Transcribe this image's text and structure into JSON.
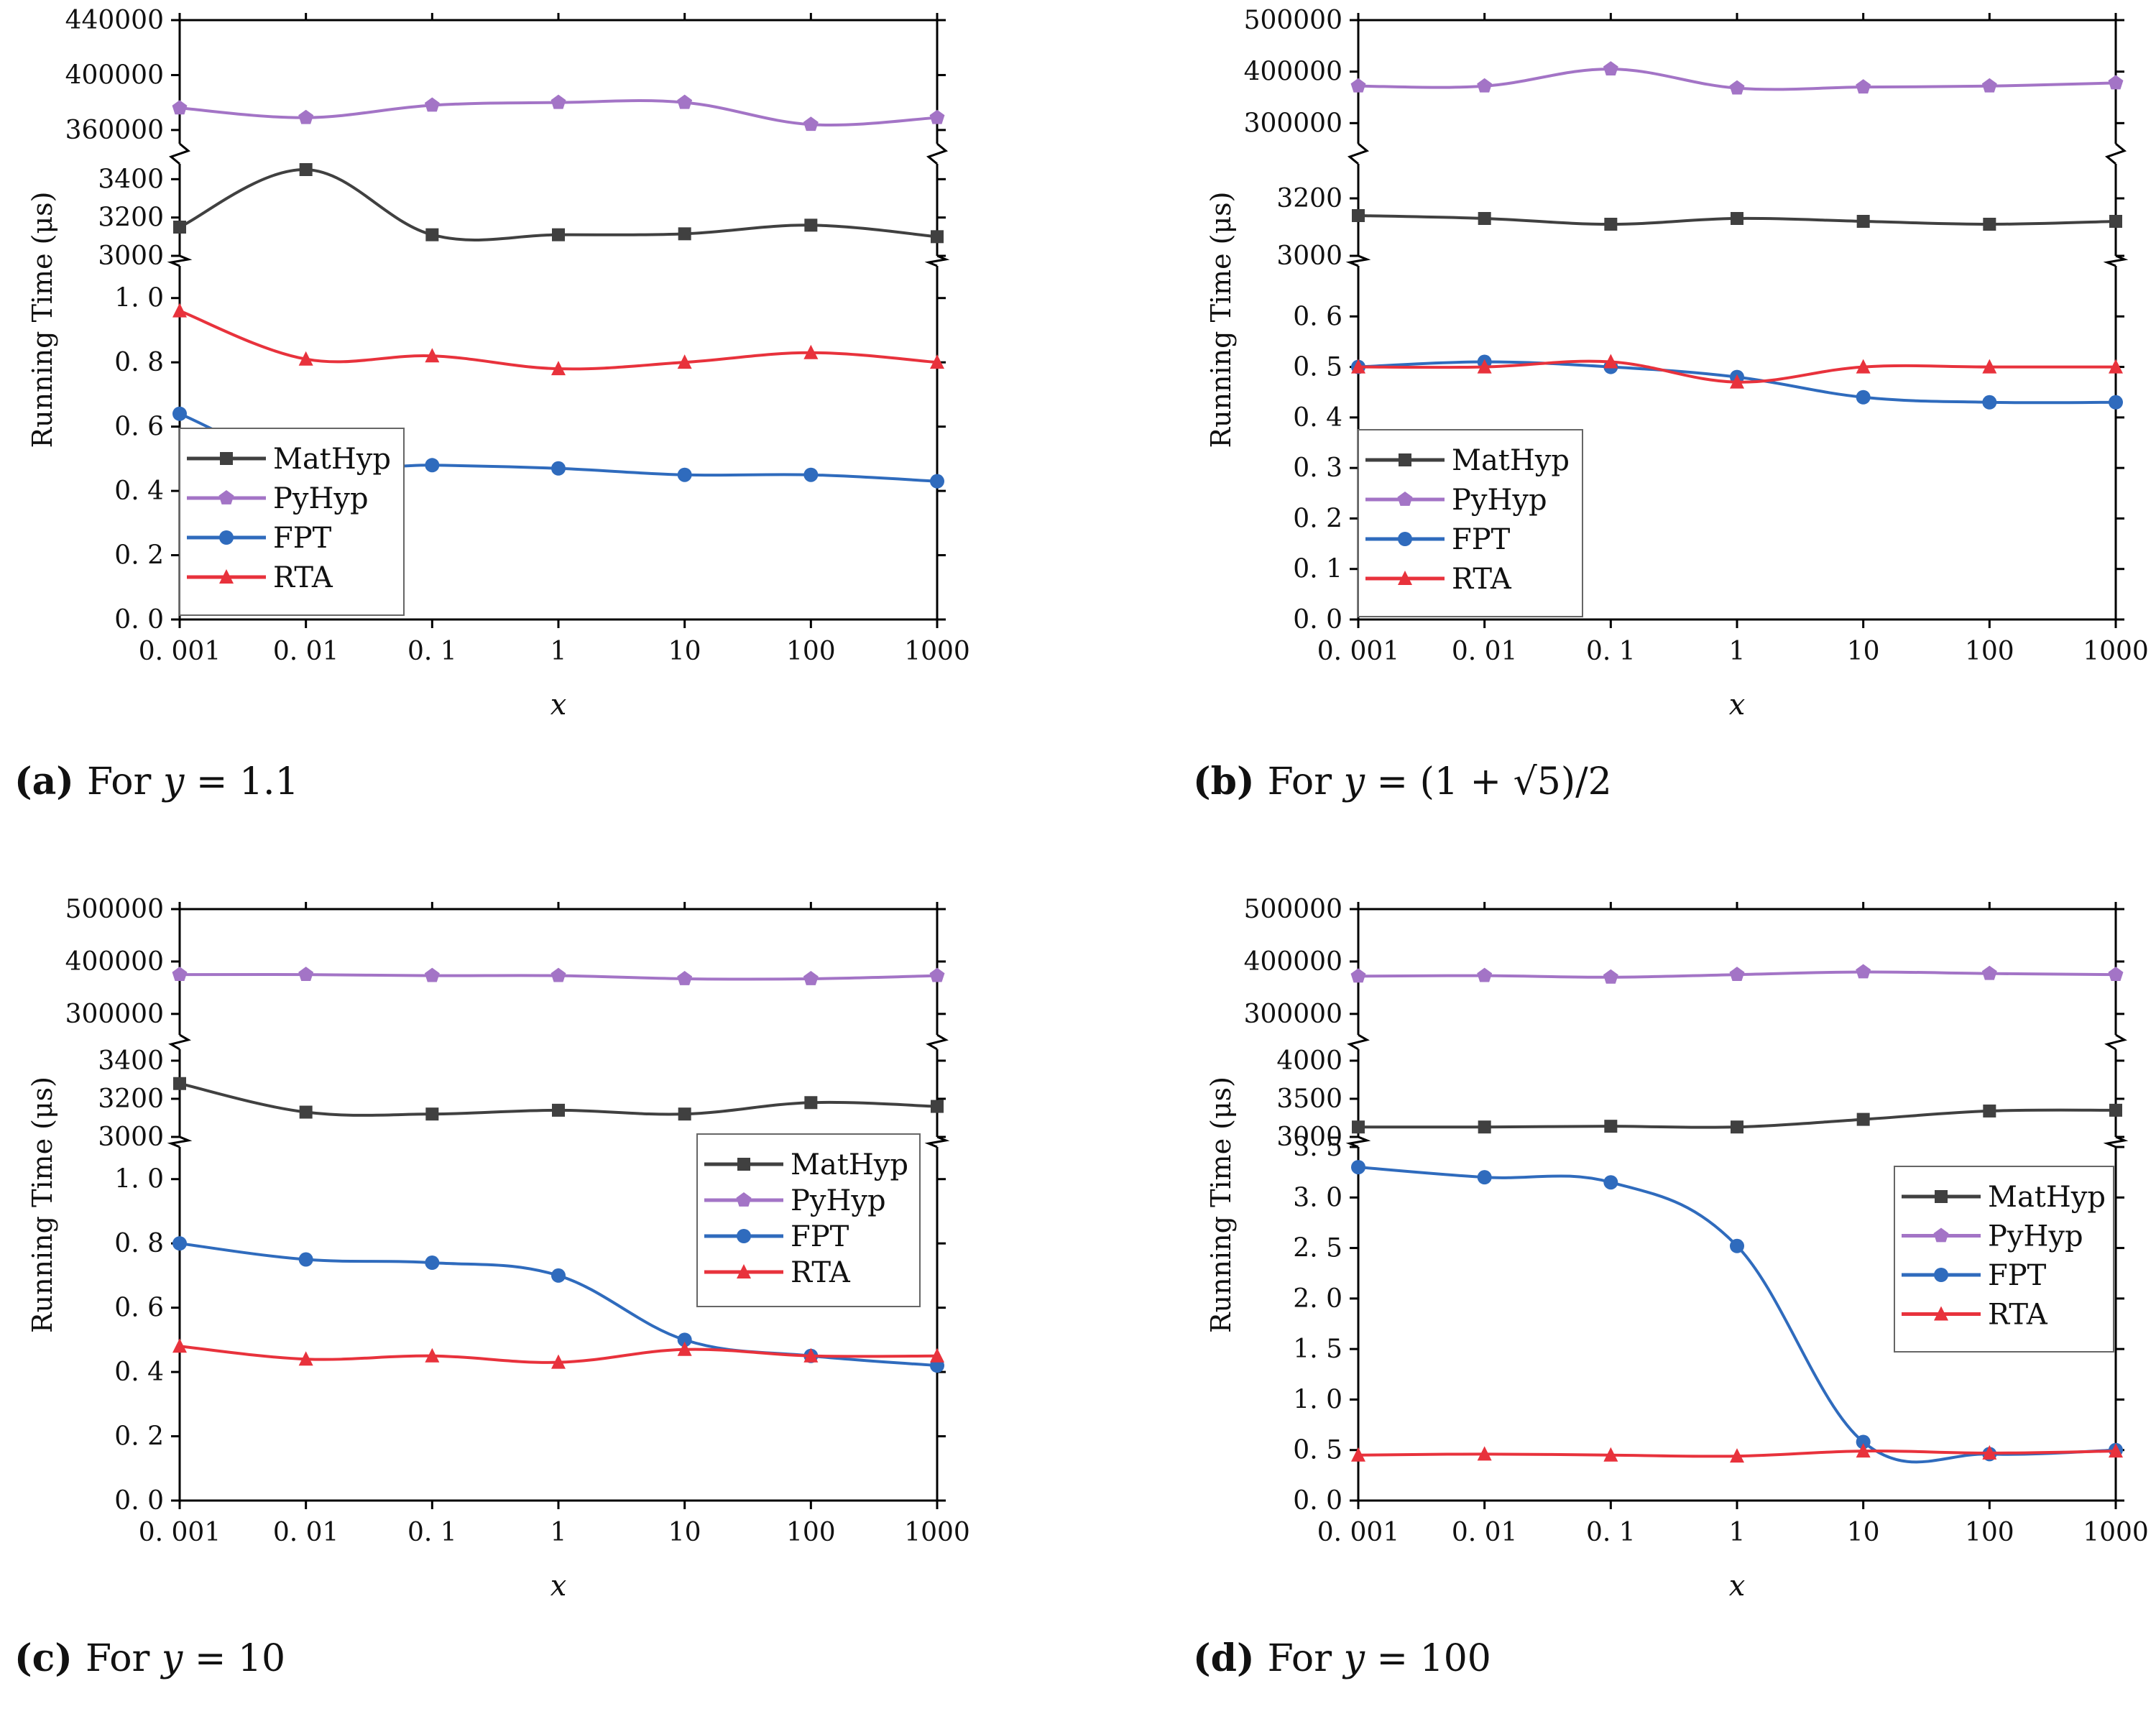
{
  "colors": {
    "MatHyp": "#404040",
    "PyHyp": "#a374c6",
    "FPT": "#2f6bbd",
    "RTA": "#e8323c"
  },
  "chart_data": [
    {
      "type": "line",
      "caption_label": "(a)",
      "caption_text": "For ",
      "caption_var": "y",
      "caption_value": " = 1.1",
      "xlabel": "x",
      "ylabel": "Running Time (μs)",
      "x_scale": "log",
      "x_ticks": [
        "0. 001",
        "0. 01",
        "0. 1",
        "1",
        "10",
        "100",
        "1000"
      ],
      "x": [
        0.001,
        0.01,
        0.1,
        1,
        10,
        100,
        1000
      ],
      "legend_position": "middle-left",
      "panels": [
        {
          "range": [
            350000,
            440000
          ],
          "ticks": [
            360000,
            400000,
            440000
          ],
          "series": [
            "PyHyp"
          ]
        },
        {
          "range": [
            3000,
            3480
          ],
          "ticks": [
            3000,
            3200,
            3400
          ],
          "series": [
            "MatHyp"
          ]
        },
        {
          "range": [
            0,
            1.1
          ],
          "ticks": [
            0.0,
            0.2,
            0.4,
            0.6,
            0.8,
            1.0
          ],
          "tick_labels": [
            "0. 0",
            "0. 2",
            "0. 4",
            "0. 6",
            "0. 8",
            "1. 0"
          ],
          "series": [
            "FPT",
            "RTA"
          ]
        }
      ],
      "series": [
        {
          "name": "MatHyp",
          "values": [
            3150,
            3450,
            3110,
            3110,
            3115,
            3160,
            3100
          ]
        },
        {
          "name": "PyHyp",
          "values": [
            376000,
            369000,
            378000,
            380000,
            380000,
            364000,
            369000
          ]
        },
        {
          "name": "FPT",
          "values": [
            0.64,
            0.48,
            0.48,
            0.47,
            0.45,
            0.45,
            0.43
          ]
        },
        {
          "name": "RTA",
          "values": [
            0.96,
            0.81,
            0.82,
            0.78,
            0.8,
            0.83,
            0.8
          ]
        }
      ]
    },
    {
      "type": "line",
      "caption_label": "(b)",
      "caption_text": "For ",
      "caption_var": "y",
      "caption_value": " = (1 + √5)/2",
      "xlabel": "x",
      "ylabel": "Running Time (μs)",
      "x_scale": "log",
      "x_ticks": [
        "0. 001",
        "0. 01",
        "0. 1",
        "1",
        "10",
        "100",
        "1000"
      ],
      "x": [
        0.001,
        0.01,
        0.1,
        1,
        10,
        100,
        1000
      ],
      "legend_position": "bottom-left",
      "panels": [
        {
          "range": [
            260000,
            500000
          ],
          "ticks": [
            300000,
            400000,
            500000
          ],
          "series": [
            "PyHyp"
          ]
        },
        {
          "range": [
            3000,
            3320
          ],
          "ticks": [
            3000,
            3200
          ],
          "series": [
            "MatHyp"
          ]
        },
        {
          "range": [
            0,
            0.7
          ],
          "ticks": [
            0.0,
            0.1,
            0.2,
            0.3,
            0.4,
            0.5,
            0.6
          ],
          "tick_labels": [
            "0. 0",
            "0. 1",
            "0. 2",
            "0. 3",
            "0. 4",
            "0. 5",
            "0. 6"
          ],
          "series": [
            "FPT",
            "RTA"
          ]
        }
      ],
      "series": [
        {
          "name": "MatHyp",
          "values": [
            3140,
            3130,
            3110,
            3130,
            3120,
            3110,
            3120
          ]
        },
        {
          "name": "PyHyp",
          "values": [
            372000,
            372000,
            405000,
            368000,
            370000,
            372000,
            378000
          ]
        },
        {
          "name": "FPT",
          "values": [
            0.5,
            0.51,
            0.5,
            0.48,
            0.44,
            0.43,
            0.43
          ]
        },
        {
          "name": "RTA",
          "values": [
            0.5,
            0.5,
            0.51,
            0.47,
            0.5,
            0.5,
            0.5
          ]
        }
      ]
    },
    {
      "type": "line",
      "caption_label": "(c)",
      "caption_text": "For ",
      "caption_var": "y",
      "caption_value": " = 10",
      "xlabel": "x",
      "ylabel": "Running Time (μs)",
      "x_scale": "log",
      "x_ticks": [
        "0. 001",
        "0. 01",
        "0. 1",
        "1",
        "10",
        "100",
        "1000"
      ],
      "x": [
        0.001,
        0.01,
        0.1,
        1,
        10,
        100,
        1000
      ],
      "legend_position": "top-right",
      "panels": [
        {
          "range": [
            260000,
            500000
          ],
          "ticks": [
            300000,
            400000,
            500000
          ],
          "series": [
            "PyHyp"
          ]
        },
        {
          "range": [
            3000,
            3460
          ],
          "ticks": [
            3000,
            3200,
            3400
          ],
          "series": [
            "MatHyp"
          ]
        },
        {
          "range": [
            0,
            1.1
          ],
          "ticks": [
            0.0,
            0.2,
            0.4,
            0.6,
            0.8,
            1.0
          ],
          "tick_labels": [
            "0. 0",
            "0. 2",
            "0. 4",
            "0. 6",
            "0. 8",
            "1. 0"
          ],
          "series": [
            "FPT",
            "RTA"
          ]
        }
      ],
      "series": [
        {
          "name": "MatHyp",
          "values": [
            3280,
            3130,
            3120,
            3140,
            3120,
            3180,
            3160
          ]
        },
        {
          "name": "PyHyp",
          "values": [
            375000,
            375000,
            373000,
            373000,
            367000,
            367000,
            373000
          ]
        },
        {
          "name": "FPT",
          "values": [
            0.8,
            0.75,
            0.74,
            0.7,
            0.5,
            0.45,
            0.42
          ]
        },
        {
          "name": "RTA",
          "values": [
            0.48,
            0.44,
            0.45,
            0.43,
            0.47,
            0.45,
            0.45
          ]
        }
      ]
    },
    {
      "type": "line",
      "caption_label": "(d)",
      "caption_text": "For ",
      "caption_var": "y",
      "caption_value": " = 100",
      "xlabel": "x",
      "ylabel": "Running Time (μs)",
      "x_scale": "log",
      "x_ticks": [
        "0. 001",
        "0. 01",
        "0. 1",
        "1",
        "10",
        "100",
        "1000"
      ],
      "x": [
        0.001,
        0.01,
        0.1,
        1,
        10,
        100,
        1000
      ],
      "legend_position": "top-right",
      "panels": [
        {
          "range": [
            260000,
            500000
          ],
          "ticks": [
            300000,
            400000,
            500000
          ],
          "series": [
            "PyHyp"
          ]
        },
        {
          "range": [
            3000,
            4150
          ],
          "ticks": [
            3000,
            3500,
            4000
          ],
          "series": [
            "MatHyp"
          ]
        },
        {
          "range": [
            0,
            3.5
          ],
          "ticks": [
            0.0,
            0.5,
            1.0,
            1.5,
            2.0,
            2.5,
            3.0,
            3.5
          ],
          "tick_labels": [
            "0. 0",
            "0. 5",
            "1. 0",
            "1. 5",
            "2. 0",
            "2. 5",
            "3. 0",
            "3. 5"
          ],
          "series": [
            "FPT",
            "RTA"
          ]
        }
      ],
      "series": [
        {
          "name": "MatHyp",
          "values": [
            3130,
            3130,
            3140,
            3130,
            3230,
            3340,
            3350
          ]
        },
        {
          "name": "PyHyp",
          "values": [
            372000,
            373000,
            370000,
            375000,
            380000,
            377000,
            375000
          ]
        },
        {
          "name": "FPT",
          "values": [
            3.3,
            3.2,
            3.15,
            2.52,
            0.58,
            0.46,
            0.5
          ]
        },
        {
          "name": "RTA",
          "values": [
            0.45,
            0.46,
            0.45,
            0.44,
            0.49,
            0.47,
            0.49
          ]
        }
      ]
    }
  ]
}
